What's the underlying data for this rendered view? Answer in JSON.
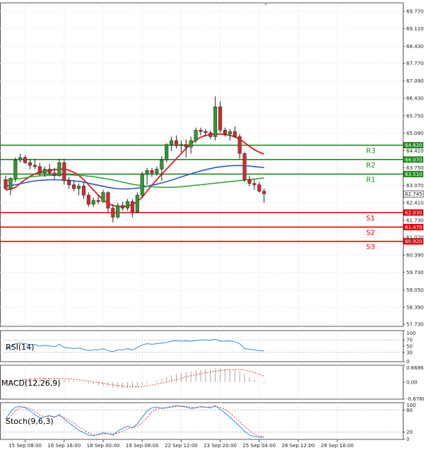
{
  "chart_data": {
    "type": "candlestick",
    "price_axis": {
      "ticks": [
        69.77,
        69.11,
        68.43,
        67.77,
        67.09,
        66.43,
        65.75,
        65.09,
        64.41,
        63.75,
        63.07,
        62.41,
        61.73,
        61.07,
        60.39,
        59.73,
        59.05,
        58.39,
        57.73
      ],
      "ylim": [
        57.65,
        70.1
      ],
      "current_price": 62.745
    },
    "x_axis": {
      "labels": [
        "15 Sep 08:00",
        "16 Sep 16:00",
        "18 Sep 00:00",
        "19 Sep 08:00",
        "22 Sep 12:00",
        "23 Sep 20:00",
        "25 Sep 04:00",
        "26 Sep 12:00",
        "29 Sep 16:00"
      ],
      "label_positions": [
        4,
        12,
        20,
        28,
        36,
        44,
        52,
        60,
        68
      ]
    },
    "candles": [
      {
        "o": 63.3,
        "h": 63.45,
        "l": 62.9,
        "c": 62.95
      },
      {
        "o": 62.95,
        "h": 63.4,
        "l": 62.7,
        "c": 63.35
      },
      {
        "o": 63.35,
        "h": 64.15,
        "l": 63.2,
        "c": 64.05
      },
      {
        "o": 64.05,
        "h": 64.3,
        "l": 63.95,
        "c": 64.15
      },
      {
        "o": 64.15,
        "h": 64.25,
        "l": 63.9,
        "c": 63.95
      },
      {
        "o": 63.95,
        "h": 64.1,
        "l": 63.7,
        "c": 63.85
      },
      {
        "o": 63.85,
        "h": 64.1,
        "l": 63.7,
        "c": 63.8
      },
      {
        "o": 63.8,
        "h": 63.95,
        "l": 63.45,
        "c": 63.55
      },
      {
        "o": 63.55,
        "h": 63.8,
        "l": 63.4,
        "c": 63.7
      },
      {
        "o": 63.7,
        "h": 63.9,
        "l": 63.5,
        "c": 63.55
      },
      {
        "o": 63.55,
        "h": 63.75,
        "l": 63.3,
        "c": 63.45
      },
      {
        "o": 63.45,
        "h": 64.1,
        "l": 63.4,
        "c": 63.95
      },
      {
        "o": 63.95,
        "h": 64.1,
        "l": 63.1,
        "c": 63.25
      },
      {
        "o": 63.25,
        "h": 63.4,
        "l": 62.95,
        "c": 63.1
      },
      {
        "o": 63.1,
        "h": 63.25,
        "l": 62.85,
        "c": 62.95
      },
      {
        "o": 62.95,
        "h": 63.15,
        "l": 62.7,
        "c": 63.05
      },
      {
        "o": 63.05,
        "h": 63.2,
        "l": 62.55,
        "c": 62.7
      },
      {
        "o": 62.7,
        "h": 62.8,
        "l": 62.25,
        "c": 62.35
      },
      {
        "o": 62.35,
        "h": 62.6,
        "l": 62.25,
        "c": 62.5
      },
      {
        "o": 62.5,
        "h": 62.7,
        "l": 62.35,
        "c": 62.45
      },
      {
        "o": 62.45,
        "h": 62.9,
        "l": 62.4,
        "c": 62.8
      },
      {
        "o": 62.8,
        "h": 62.85,
        "l": 62.05,
        "c": 62.2
      },
      {
        "o": 62.2,
        "h": 62.35,
        "l": 61.65,
        "c": 61.85
      },
      {
        "o": 61.85,
        "h": 62.4,
        "l": 61.8,
        "c": 62.3
      },
      {
        "o": 62.3,
        "h": 62.45,
        "l": 62.1,
        "c": 62.2
      },
      {
        "o": 62.2,
        "h": 62.55,
        "l": 62.1,
        "c": 62.45
      },
      {
        "o": 62.45,
        "h": 62.55,
        "l": 61.85,
        "c": 62.05
      },
      {
        "o": 62.05,
        "h": 62.8,
        "l": 62.0,
        "c": 62.7
      },
      {
        "o": 62.7,
        "h": 63.6,
        "l": 62.6,
        "c": 63.5
      },
      {
        "o": 63.5,
        "h": 63.75,
        "l": 63.1,
        "c": 63.65
      },
      {
        "o": 63.65,
        "h": 63.75,
        "l": 63.4,
        "c": 63.55
      },
      {
        "o": 63.55,
        "h": 63.8,
        "l": 63.45,
        "c": 63.7
      },
      {
        "o": 63.7,
        "h": 64.2,
        "l": 63.25,
        "c": 64.05
      },
      {
        "o": 64.05,
        "h": 64.7,
        "l": 63.95,
        "c": 64.65
      },
      {
        "o": 64.65,
        "h": 64.95,
        "l": 64.4,
        "c": 64.8
      },
      {
        "o": 64.8,
        "h": 65.0,
        "l": 64.5,
        "c": 64.6
      },
      {
        "o": 64.6,
        "h": 64.8,
        "l": 64.35,
        "c": 64.65
      },
      {
        "o": 64.65,
        "h": 64.85,
        "l": 64.15,
        "c": 64.55
      },
      {
        "o": 64.55,
        "h": 64.95,
        "l": 64.3,
        "c": 64.8
      },
      {
        "o": 64.8,
        "h": 65.3,
        "l": 64.7,
        "c": 65.2
      },
      {
        "o": 65.2,
        "h": 65.3,
        "l": 65.0,
        "c": 65.15
      },
      {
        "o": 65.15,
        "h": 65.25,
        "l": 64.95,
        "c": 65.1
      },
      {
        "o": 65.1,
        "h": 65.2,
        "l": 64.85,
        "c": 64.95
      },
      {
        "o": 64.95,
        "h": 66.5,
        "l": 64.8,
        "c": 66.1
      },
      {
        "o": 66.1,
        "h": 66.3,
        "l": 65.1,
        "c": 65.2
      },
      {
        "o": 65.2,
        "h": 65.3,
        "l": 64.95,
        "c": 65.05
      },
      {
        "o": 65.05,
        "h": 65.25,
        "l": 64.8,
        "c": 65.15
      },
      {
        "o": 65.15,
        "h": 65.35,
        "l": 64.9,
        "c": 64.95
      },
      {
        "o": 64.95,
        "h": 65.05,
        "l": 64.1,
        "c": 64.3
      },
      {
        "o": 64.3,
        "h": 64.35,
        "l": 63.2,
        "c": 63.3
      },
      {
        "o": 63.3,
        "h": 63.45,
        "l": 63.05,
        "c": 63.15
      },
      {
        "o": 63.15,
        "h": 63.3,
        "l": 62.9,
        "c": 63.1
      },
      {
        "o": 63.1,
        "h": 63.2,
        "l": 62.8,
        "c": 62.85
      },
      {
        "o": 62.85,
        "h": 62.95,
        "l": 62.4,
        "c": 62.75
      }
    ],
    "moving_averages": [
      {
        "color": "#e31b1b",
        "values": [
          62.9,
          62.93,
          63.0,
          63.15,
          63.3,
          63.42,
          63.52,
          63.58,
          63.62,
          63.66,
          63.68,
          63.7,
          63.7,
          63.66,
          63.58,
          63.46,
          63.3,
          63.1,
          62.9,
          62.7,
          62.52,
          62.38,
          62.3,
          62.26,
          62.26,
          62.28,
          62.34,
          62.45,
          62.62,
          62.85,
          63.08,
          63.3,
          63.5,
          63.7,
          63.9,
          64.1,
          64.3,
          64.5,
          64.68,
          64.82,
          64.93,
          65.0,
          65.03,
          65.05,
          65.05,
          65.03,
          65.0,
          64.95,
          64.85,
          64.72,
          64.58,
          64.45,
          64.35,
          64.28
        ]
      },
      {
        "color": "#3055cc",
        "values": [
          63.05,
          63.07,
          63.1,
          63.14,
          63.18,
          63.22,
          63.25,
          63.27,
          63.28,
          63.29,
          63.29,
          63.29,
          63.28,
          63.27,
          63.25,
          63.23,
          63.2,
          63.16,
          63.12,
          63.08,
          63.04,
          63.0,
          62.97,
          62.95,
          62.94,
          62.94,
          62.95,
          62.97,
          63.0,
          63.04,
          63.08,
          63.12,
          63.17,
          63.22,
          63.28,
          63.34,
          63.4,
          63.46,
          63.52,
          63.58,
          63.63,
          63.68,
          63.72,
          63.76,
          63.79,
          63.81,
          63.83,
          63.84,
          63.84,
          63.83,
          63.82,
          63.8,
          63.78,
          63.76
        ]
      },
      {
        "color": "#3aa33a",
        "values": [
          63.25,
          63.28,
          63.31,
          63.34,
          63.37,
          63.4,
          63.42,
          63.44,
          63.45,
          63.46,
          63.47,
          63.48,
          63.48,
          63.48,
          63.47,
          63.46,
          63.45,
          63.43,
          63.41,
          63.38,
          63.35,
          63.32,
          63.28,
          63.24,
          63.2,
          63.16,
          63.12,
          63.09,
          63.06,
          63.04,
          63.02,
          63.01,
          63.0,
          63.0,
          63.0,
          63.01,
          63.02,
          63.04,
          63.06,
          63.08,
          63.1,
          63.12,
          63.14,
          63.16,
          63.18,
          63.2,
          63.22,
          63.24,
          63.26,
          63.28,
          63.3,
          63.32,
          63.34,
          63.36
        ]
      }
    ],
    "support_resistance": [
      {
        "label": "R3",
        "value": 64.62,
        "tag": "64.620",
        "color": "#1f8a1f"
      },
      {
        "label": "R2",
        "value": 64.07,
        "tag": "64.070",
        "color": "#1f8a1f"
      },
      {
        "label": "R1",
        "value": 63.51,
        "tag": "63.510",
        "color": "#1f8a1f"
      },
      {
        "label": "S1",
        "value": 62.03,
        "tag": "62.030",
        "color": "#e00000"
      },
      {
        "label": "S2",
        "value": 61.47,
        "tag": "61.470",
        "color": "#e00000"
      },
      {
        "label": "S3",
        "value": 60.92,
        "tag": "60.920",
        "color": "#e00000"
      }
    ],
    "rsi": {
      "title": "RSI(14)",
      "ticks": [
        100,
        70,
        50,
        30,
        0
      ],
      "ylim": [
        0,
        100
      ],
      "values": [
        40,
        48,
        58,
        60,
        58,
        55,
        55,
        50,
        53,
        51,
        48,
        56,
        46,
        44,
        42,
        44,
        40,
        36,
        38,
        38,
        42,
        36,
        32,
        38,
        38,
        42,
        38,
        46,
        54,
        58,
        56,
        58,
        60,
        62,
        66,
        68,
        66,
        67,
        66,
        68,
        70,
        70,
        69,
        72,
        66,
        66,
        67,
        64,
        58,
        42,
        40,
        38,
        36,
        35
      ]
    },
    "macd": {
      "title": "MACD(12,26,9)",
      "ticks": [
        "0.6686",
        "0.00",
        "-0.6768"
      ],
      "ylim": [
        -0.6768,
        0.6686
      ],
      "histogram": [
        0.05,
        0.06,
        0.09,
        0.12,
        0.15,
        0.17,
        0.18,
        0.18,
        0.17,
        0.16,
        0.14,
        0.14,
        0.11,
        0.08,
        0.05,
        0.02,
        -0.02,
        -0.06,
        -0.1,
        -0.13,
        -0.15,
        -0.18,
        -0.22,
        -0.23,
        -0.24,
        -0.23,
        -0.23,
        -0.19,
        -0.12,
        -0.05,
        0.02,
        0.08,
        0.13,
        0.2,
        0.27,
        0.32,
        0.36,
        0.39,
        0.42,
        0.46,
        0.48,
        0.5,
        0.5,
        0.55,
        0.55,
        0.53,
        0.52,
        0.5,
        0.44,
        0.32,
        0.2,
        0.1,
        0.02,
        -0.05
      ],
      "signal": [
        0.02,
        0.03,
        0.05,
        0.07,
        0.09,
        0.11,
        0.13,
        0.14,
        0.15,
        0.15,
        0.15,
        0.15,
        0.14,
        0.13,
        0.11,
        0.09,
        0.07,
        0.04,
        0.01,
        -0.02,
        -0.05,
        -0.08,
        -0.11,
        -0.14,
        -0.16,
        -0.18,
        -0.19,
        -0.19,
        -0.18,
        -0.15,
        -0.12,
        -0.08,
        -0.04,
        0.0,
        0.05,
        0.1,
        0.15,
        0.2,
        0.25,
        0.29,
        0.33,
        0.37,
        0.4,
        0.43,
        0.46,
        0.48,
        0.49,
        0.5,
        0.5,
        0.48,
        0.44,
        0.38,
        0.31,
        0.24
      ]
    },
    "stochastic": {
      "title": "Stoch(9,6,3)",
      "ticks": [
        100,
        80,
        20,
        0
      ],
      "ylim": [
        0,
        100
      ],
      "k": [
        55,
        75,
        88,
        90,
        86,
        78,
        68,
        58,
        62,
        65,
        60,
        68,
        55,
        45,
        35,
        25,
        18,
        12,
        10,
        14,
        18,
        16,
        12,
        22,
        30,
        36,
        32,
        42,
        60,
        78,
        86,
        88,
        84,
        86,
        90,
        92,
        90,
        88,
        84,
        86,
        90,
        88,
        86,
        92,
        82,
        72,
        60,
        48,
        36,
        22,
        12,
        8,
        6,
        6
      ],
      "d": [
        45,
        62,
        78,
        86,
        88,
        84,
        76,
        66,
        62,
        62,
        62,
        64,
        60,
        52,
        44,
        34,
        26,
        18,
        13,
        12,
        14,
        16,
        15,
        17,
        22,
        29,
        32,
        36,
        45,
        60,
        75,
        84,
        86,
        86,
        87,
        89,
        91,
        90,
        87,
        86,
        87,
        88,
        88,
        89,
        87,
        82,
        72,
        60,
        48,
        36,
        24,
        14,
        9,
        7
      ]
    }
  }
}
